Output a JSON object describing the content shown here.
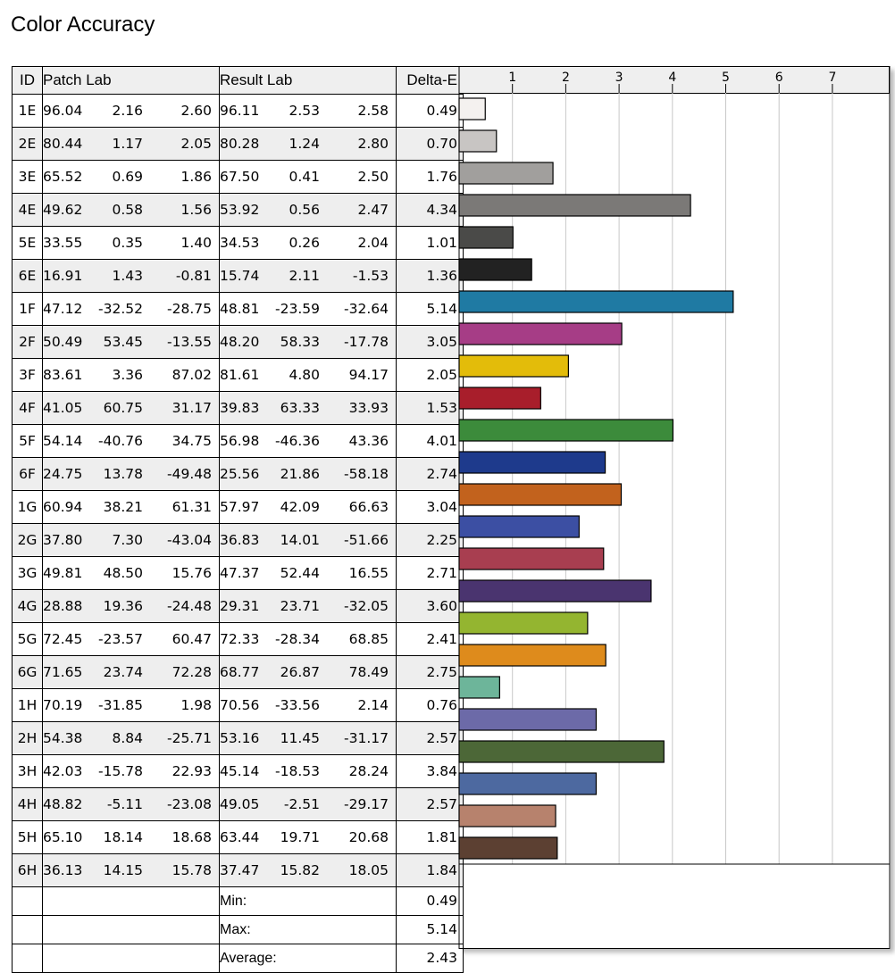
{
  "title": "Color Accuracy",
  "columns": {
    "id": "ID",
    "patch": "Patch Lab",
    "result": "Result Lab",
    "delta": "Delta-E"
  },
  "rows": [
    {
      "id": "1E",
      "patch": [
        "96.04",
        "2.16",
        "2.60"
      ],
      "result": [
        "96.11",
        "2.53",
        "2.58"
      ],
      "delta": "0.49"
    },
    {
      "id": "2E",
      "patch": [
        "80.44",
        "1.17",
        "2.05"
      ],
      "result": [
        "80.28",
        "1.24",
        "2.80"
      ],
      "delta": "0.70"
    },
    {
      "id": "3E",
      "patch": [
        "65.52",
        "0.69",
        "1.86"
      ],
      "result": [
        "67.50",
        "0.41",
        "2.50"
      ],
      "delta": "1.76"
    },
    {
      "id": "4E",
      "patch": [
        "49.62",
        "0.58",
        "1.56"
      ],
      "result": [
        "53.92",
        "0.56",
        "2.47"
      ],
      "delta": "4.34"
    },
    {
      "id": "5E",
      "patch": [
        "33.55",
        "0.35",
        "1.40"
      ],
      "result": [
        "34.53",
        "0.26",
        "2.04"
      ],
      "delta": "1.01"
    },
    {
      "id": "6E",
      "patch": [
        "16.91",
        "1.43",
        "-0.81"
      ],
      "result": [
        "15.74",
        "2.11",
        "-1.53"
      ],
      "delta": "1.36"
    },
    {
      "id": "1F",
      "patch": [
        "47.12",
        "-32.52",
        "-28.75"
      ],
      "result": [
        "48.81",
        "-23.59",
        "-32.64"
      ],
      "delta": "5.14"
    },
    {
      "id": "2F",
      "patch": [
        "50.49",
        "53.45",
        "-13.55"
      ],
      "result": [
        "48.20",
        "58.33",
        "-17.78"
      ],
      "delta": "3.05"
    },
    {
      "id": "3F",
      "patch": [
        "83.61",
        "3.36",
        "87.02"
      ],
      "result": [
        "81.61",
        "4.80",
        "94.17"
      ],
      "delta": "2.05"
    },
    {
      "id": "4F",
      "patch": [
        "41.05",
        "60.75",
        "31.17"
      ],
      "result": [
        "39.83",
        "63.33",
        "33.93"
      ],
      "delta": "1.53"
    },
    {
      "id": "5F",
      "patch": [
        "54.14",
        "-40.76",
        "34.75"
      ],
      "result": [
        "56.98",
        "-46.36",
        "43.36"
      ],
      "delta": "4.01"
    },
    {
      "id": "6F",
      "patch": [
        "24.75",
        "13.78",
        "-49.48"
      ],
      "result": [
        "25.56",
        "21.86",
        "-58.18"
      ],
      "delta": "2.74"
    },
    {
      "id": "1G",
      "patch": [
        "60.94",
        "38.21",
        "61.31"
      ],
      "result": [
        "57.97",
        "42.09",
        "66.63"
      ],
      "delta": "3.04"
    },
    {
      "id": "2G",
      "patch": [
        "37.80",
        "7.30",
        "-43.04"
      ],
      "result": [
        "36.83",
        "14.01",
        "-51.66"
      ],
      "delta": "2.25"
    },
    {
      "id": "3G",
      "patch": [
        "49.81",
        "48.50",
        "15.76"
      ],
      "result": [
        "47.37",
        "52.44",
        "16.55"
      ],
      "delta": "2.71"
    },
    {
      "id": "4G",
      "patch": [
        "28.88",
        "19.36",
        "-24.48"
      ],
      "result": [
        "29.31",
        "23.71",
        "-32.05"
      ],
      "delta": "3.60"
    },
    {
      "id": "5G",
      "patch": [
        "72.45",
        "-23.57",
        "60.47"
      ],
      "result": [
        "72.33",
        "-28.34",
        "68.85"
      ],
      "delta": "2.41"
    },
    {
      "id": "6G",
      "patch": [
        "71.65",
        "23.74",
        "72.28"
      ],
      "result": [
        "68.77",
        "26.87",
        "78.49"
      ],
      "delta": "2.75"
    },
    {
      "id": "1H",
      "patch": [
        "70.19",
        "-31.85",
        "1.98"
      ],
      "result": [
        "70.56",
        "-33.56",
        "2.14"
      ],
      "delta": "0.76"
    },
    {
      "id": "2H",
      "patch": [
        "54.38",
        "8.84",
        "-25.71"
      ],
      "result": [
        "53.16",
        "11.45",
        "-31.17"
      ],
      "delta": "2.57"
    },
    {
      "id": "3H",
      "patch": [
        "42.03",
        "-15.78",
        "22.93"
      ],
      "result": [
        "45.14",
        "-18.53",
        "28.24"
      ],
      "delta": "3.84"
    },
    {
      "id": "4H",
      "patch": [
        "48.82",
        "-5.11",
        "-23.08"
      ],
      "result": [
        "49.05",
        "-2.51",
        "-29.17"
      ],
      "delta": "2.57"
    },
    {
      "id": "5H",
      "patch": [
        "65.10",
        "18.14",
        "18.68"
      ],
      "result": [
        "63.44",
        "19.71",
        "20.68"
      ],
      "delta": "1.81"
    },
    {
      "id": "6H",
      "patch": [
        "36.13",
        "14.15",
        "15.78"
      ],
      "result": [
        "37.47",
        "15.82",
        "18.05"
      ],
      "delta": "1.84"
    }
  ],
  "summary": [
    {
      "label": "Min:",
      "value": "0.49"
    },
    {
      "label": "Max:",
      "value": "5.14"
    },
    {
      "label": "Average:",
      "value": "2.43"
    }
  ],
  "chart_data": {
    "type": "bar",
    "orientation": "horizontal",
    "title": "Color Accuracy",
    "xlim": [
      0,
      8
    ],
    "xticks": [
      1,
      2,
      3,
      4,
      5,
      6,
      7
    ],
    "grid": true,
    "categories": [
      "1E",
      "2E",
      "3E",
      "4E",
      "5E",
      "6E",
      "1F",
      "2F",
      "3F",
      "4F",
      "5F",
      "6F",
      "1G",
      "2G",
      "3G",
      "4G",
      "5G",
      "6G",
      "1H",
      "2H",
      "3H",
      "4H",
      "5H",
      "6H"
    ],
    "values": [
      0.49,
      0.7,
      1.76,
      4.34,
      1.01,
      1.36,
      5.14,
      3.05,
      2.05,
      1.53,
      4.01,
      2.74,
      3.04,
      2.25,
      2.71,
      3.6,
      2.41,
      2.75,
      0.76,
      2.57,
      3.84,
      2.57,
      1.81,
      1.84
    ],
    "bar_colors": [
      "#f4f1ef",
      "#c8c5c3",
      "#a19f9d",
      "#7b7977",
      "#4a4a48",
      "#222222",
      "#1f7aa3",
      "#a63d86",
      "#e3bc0a",
      "#a81e2b",
      "#3c8b3b",
      "#1e3a8c",
      "#c2621d",
      "#3c4fa3",
      "#a83e50",
      "#4a346f",
      "#94b530",
      "#de8b1c",
      "#6db59a",
      "#6c6aa8",
      "#4c6737",
      "#4d69a0",
      "#b7826d",
      "#5c4032"
    ]
  }
}
